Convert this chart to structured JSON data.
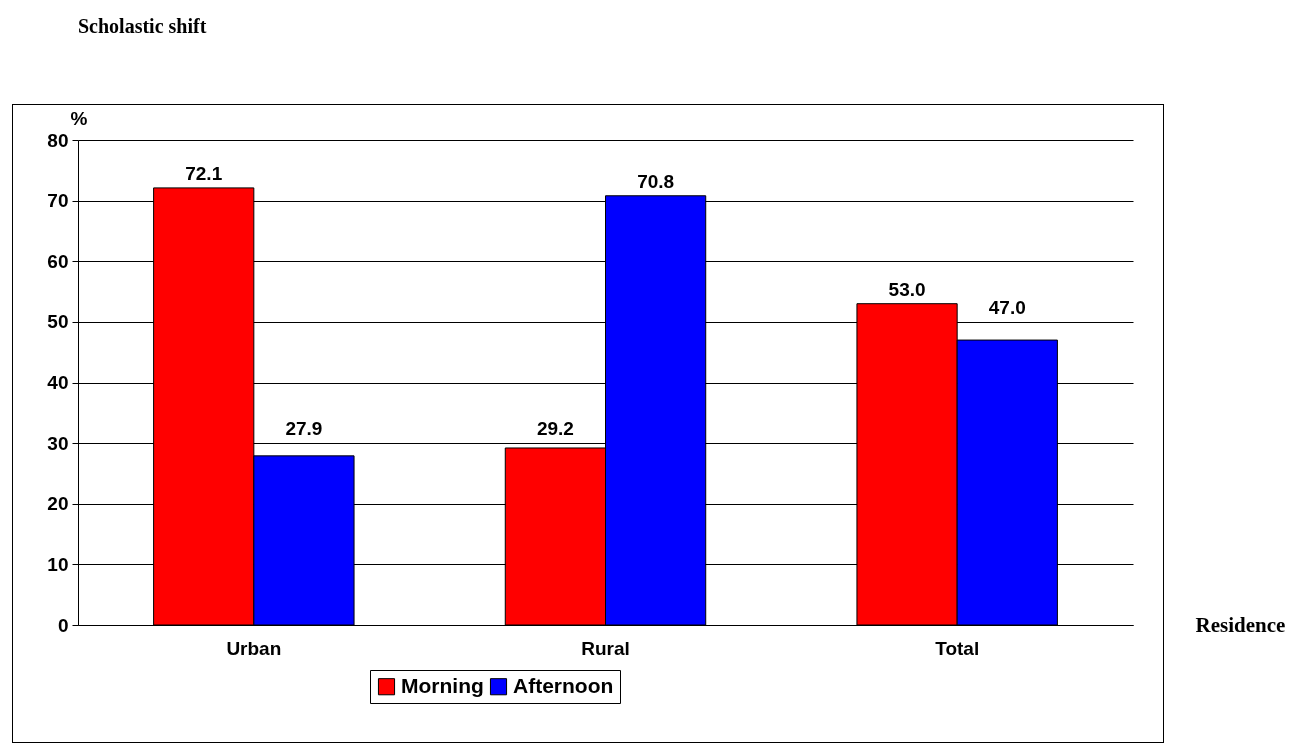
{
  "chart_data": {
    "type": "bar",
    "title": "Scholastic shift",
    "xlabel": "Residence",
    "ylabel": "%",
    "categories": [
      "Urban",
      "Rural",
      "Total"
    ],
    "series": [
      {
        "name": "Morning",
        "color": "#ff0000",
        "values": [
          72.1,
          29.2,
          53.0
        ],
        "value_labels": [
          "72.1",
          "29.2",
          "53.0"
        ]
      },
      {
        "name": "Afternoon",
        "color": "#0000ff",
        "values": [
          27.9,
          70.8,
          47.0
        ],
        "value_labels": [
          "27.9",
          "70.8",
          "47.0"
        ]
      }
    ],
    "ylim": [
      0,
      80
    ],
    "yticks": [
      0,
      10,
      20,
      30,
      40,
      50,
      60,
      70,
      80
    ],
    "grid": "y",
    "legend": "bottom"
  }
}
